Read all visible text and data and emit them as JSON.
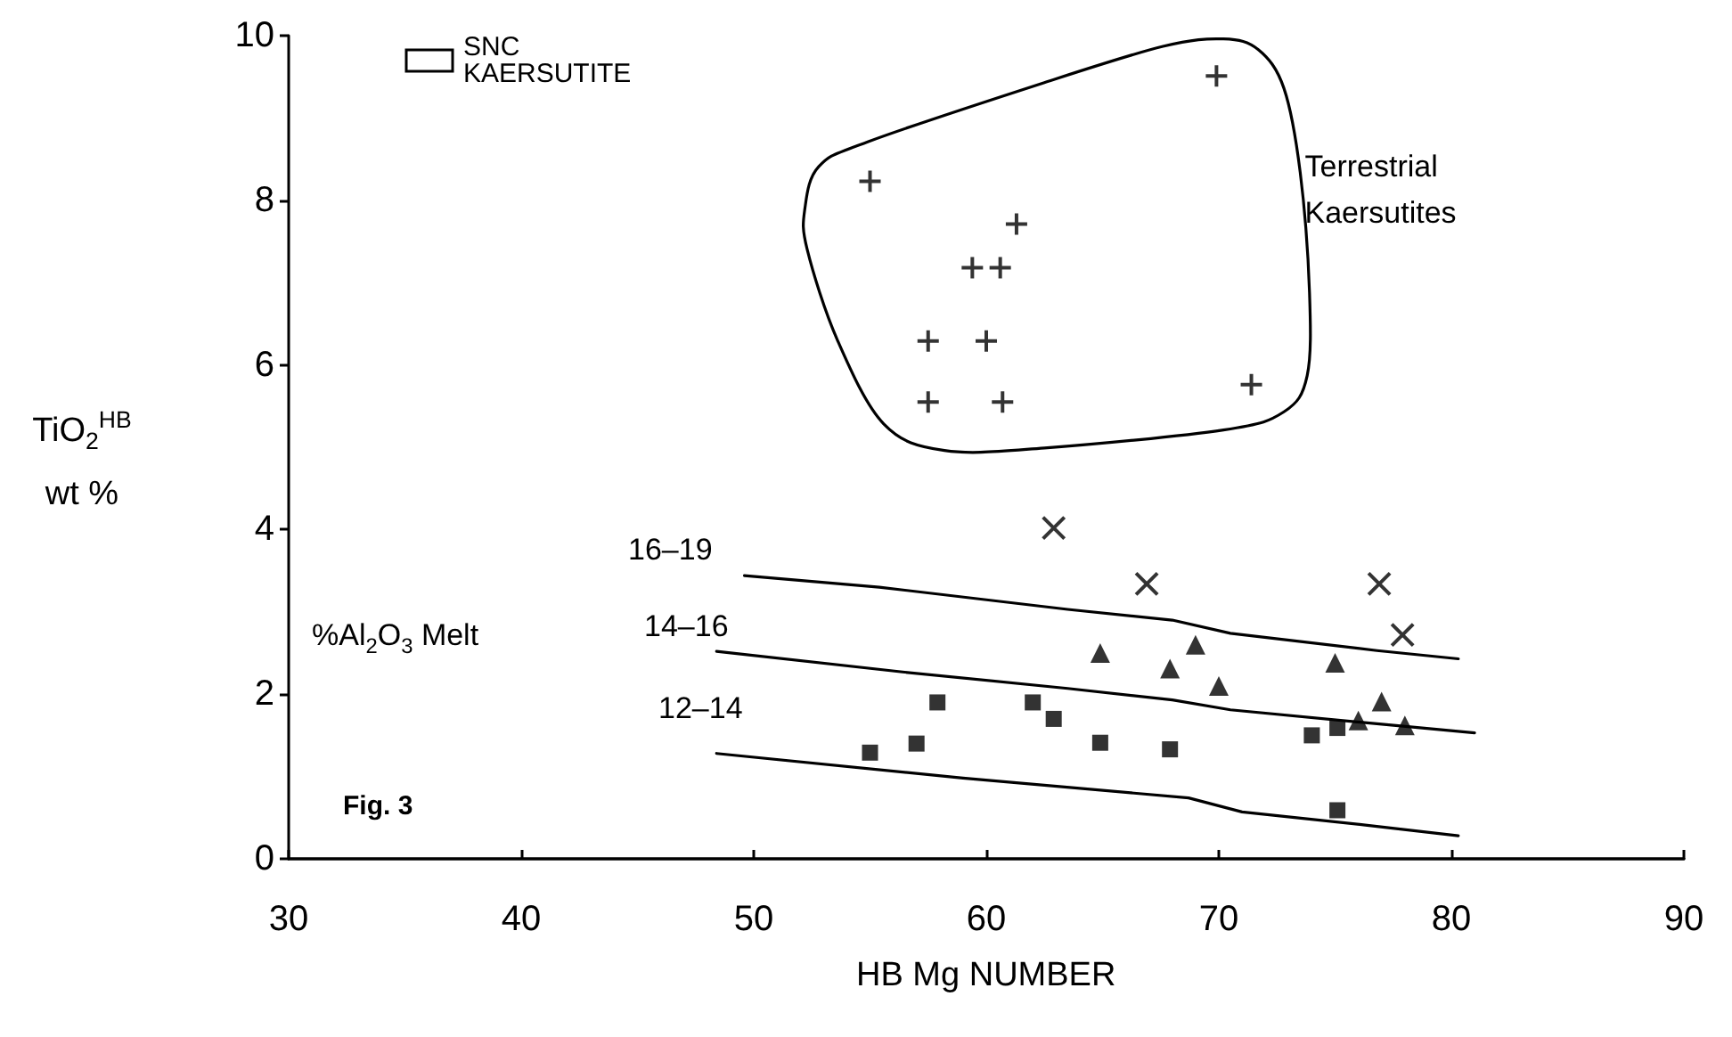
{
  "chart_data": {
    "type": "scatter",
    "xlabel": "HB Mg NUMBER",
    "ylabel": "TiO$_{2}$$^{HB}$ wt %",
    "xlim": [
      30,
      90
    ],
    "xticks": [
      30,
      40,
      50,
      60,
      70,
      80,
      90
    ],
    "ylim": [
      0,
      10
    ],
    "yticks": [
      0,
      2,
      4,
      6,
      8,
      10
    ],
    "grid": false,
    "series": [
      {
        "name": "Terrestrial Kaersutites",
        "marker": "plus",
        "color": "#000000",
        "x": [
          69.9,
          55.0,
          61.3,
          59.4,
          60.6,
          57.5,
          60.0,
          57.5,
          60.7,
          71.4
        ],
        "values": [
          9.51,
          8.23,
          7.71,
          7.18,
          7.18,
          6.29,
          6.29,
          5.55,
          5.55,
          5.76
        ]
      },
      {
        "marker": "cross",
        "color": "#000000",
        "x": [
          62.9,
          66.9,
          76.9,
          77.9
        ],
        "values": [
          4.02,
          3.34,
          3.34,
          2.72
        ]
      },
      {
        "marker": "triangle",
        "color": "#000000",
        "x": [
          64.9,
          67.9,
          69.0,
          70.0,
          75.0,
          76.0,
          77.0,
          78.0
        ],
        "values": [
          2.5,
          2.31,
          2.6,
          2.1,
          2.38,
          1.68,
          1.91,
          1.62
        ]
      },
      {
        "marker": "square",
        "color": "#000000",
        "x": [
          55.0,
          57.0,
          57.9,
          62.0,
          62.9,
          64.9,
          67.9,
          74.0,
          75.1,
          75.1
        ],
        "values": [
          1.29,
          1.4,
          1.9,
          1.9,
          1.7,
          1.41,
          1.33,
          1.5,
          1.59,
          0.59
        ]
      },
      {
        "type": "line",
        "marker": "none",
        "color": "#000000",
        "x": [
          49.6,
          55.4,
          63.5,
          68.0,
          70.5,
          76.8,
          80.3
        ],
        "values": [
          3.44,
          3.3,
          3.03,
          2.9,
          2.74,
          2.53,
          2.43
        ]
      },
      {
        "type": "line",
        "marker": "none",
        "color": "#000000",
        "x": [
          48.4,
          56.4,
          63.5,
          68.0,
          70.5,
          76.8,
          81.0
        ],
        "values": [
          2.52,
          2.27,
          2.07,
          1.93,
          1.81,
          1.64,
          1.53
        ]
      },
      {
        "type": "line",
        "marker": "none",
        "color": "#000000",
        "x": [
          48.4,
          59.0,
          68.7,
          71.0,
          76.3,
          80.3
        ],
        "values": [
          1.28,
          0.98,
          0.74,
          0.57,
          0.41,
          0.28
        ]
      }
    ],
    "annotations": [
      "16–19",
      "14–16",
      "12–14",
      "%Al$_{2}$O$_{3}$ Melt",
      "Fig. 3",
      "SNC KAERSUTITE"
    ]
  }
}
